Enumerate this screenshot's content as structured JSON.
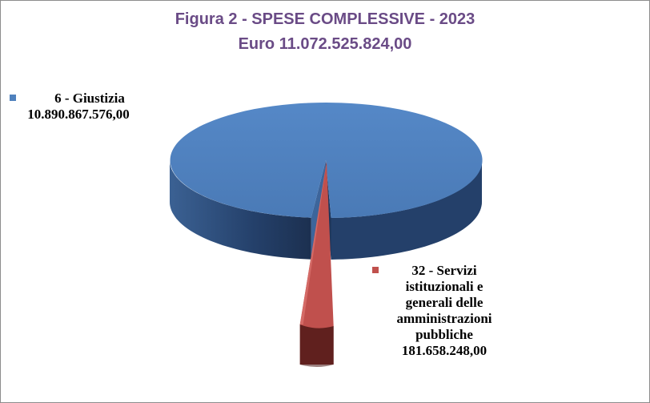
{
  "chart_data": {
    "type": "pie",
    "title": "Figura 2 - SPESE COMPLESSIVE - 2023",
    "subtitle": "Euro  11.072.525.824,00",
    "slices": [
      {
        "name": "6 - Giustizia",
        "value": 10890867576.0,
        "value_label": "10.890.867.576,00",
        "color": "#4f81bd",
        "side_color": "#2d4e7c",
        "edge_color": "#1e2f4a"
      },
      {
        "name": "32 - Servizi istituzionali e generali delle amministrazioni pubbliche",
        "value": 181658248.0,
        "value_label": "181.658.248,00",
        "color": "#c0504d",
        "side_color": "#7a2b28",
        "edge_color": "#4a1715"
      }
    ],
    "legend": {
      "item_1": {
        "label": "6 - Giustizia",
        "value": "10.890.867.576,00"
      },
      "item_2": {
        "lines": [
          "32 - Servizi",
          "istituzionali e",
          "generali delle",
          "amministrazioni",
          "pubbliche"
        ],
        "value": "181.658.248,00"
      }
    }
  }
}
